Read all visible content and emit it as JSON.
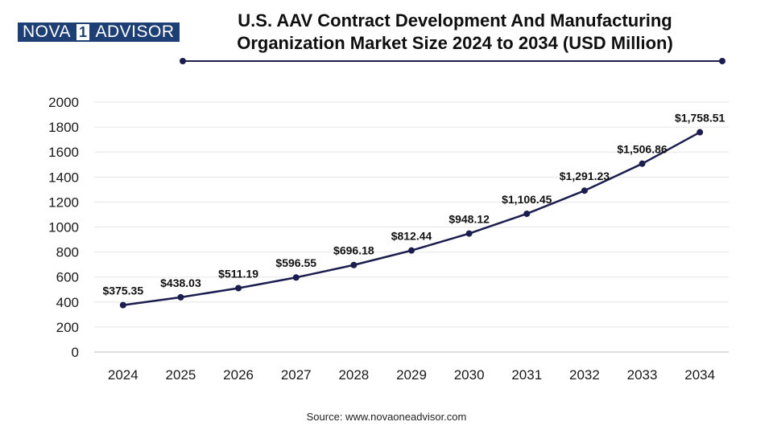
{
  "brand": {
    "nova": "NOVA",
    "one": "1",
    "advisor": "ADVISOR"
  },
  "header": {
    "title_line1": "U.S. AAV Contract Development And Manufacturing",
    "title_line2": "Organization Market Size 2024 to 2034 (USD Million)"
  },
  "source": "Source: www.novaoneadvisor.com",
  "colors": {
    "line": "#1c1d4f",
    "brand": "#1e3f73",
    "grid": "#e6e6e6"
  },
  "chart_data": {
    "type": "line",
    "title": "U.S. AAV Contract Development And Manufacturing Organization Market Size 2024 to 2034 (USD Million)",
    "xlabel": "",
    "ylabel": "",
    "categories": [
      "2024",
      "2025",
      "2026",
      "2027",
      "2028",
      "2029",
      "2030",
      "2031",
      "2032",
      "2033",
      "2034"
    ],
    "values": [
      375.35,
      438.03,
      511.19,
      596.55,
      696.18,
      812.44,
      948.12,
      1106.45,
      1291.23,
      1506.86,
      1758.51
    ],
    "data_labels": [
      "$375.35",
      "$438.03",
      "$511.19",
      "$596.55",
      "$696.18",
      "$812.44",
      "$948.12",
      "$1,106.45",
      "$1,291.23",
      "$1,506.86",
      "$1,758.51"
    ],
    "ylim": [
      0,
      2000
    ],
    "yticks": [
      "0",
      "200",
      "400",
      "600",
      "800",
      "1000",
      "1200",
      "1400",
      "1600",
      "1800",
      "2000"
    ],
    "grid": true,
    "legend": "none"
  }
}
